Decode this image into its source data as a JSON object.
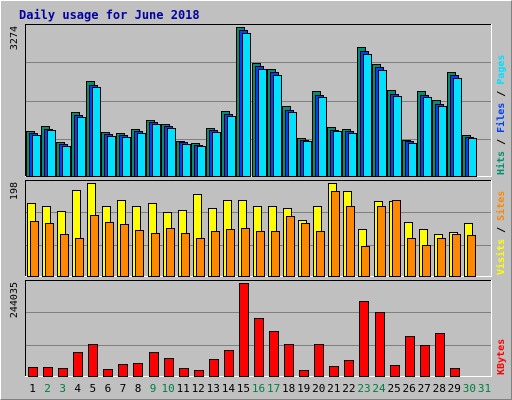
{
  "chart_data": {
    "type": "bar",
    "title": "Daily usage for June 2018",
    "colors": {
      "hits": "#009070",
      "files": "#0040ff",
      "pages": "#00e0ff",
      "visits": "#ffff00",
      "sites": "#ff8800",
      "kbytes": "#ff0000",
      "weekend_label": "#008040",
      "weekday_label": "#000000",
      "title": "#0000a0",
      "plot_bg": "#c0c0c0",
      "grid": "#808080"
    },
    "categories": [
      "1",
      "2",
      "3",
      "4",
      "5",
      "6",
      "7",
      "8",
      "9",
      "10",
      "11",
      "12",
      "13",
      "14",
      "15",
      "16",
      "17",
      "18",
      "19",
      "20",
      "21",
      "22",
      "23",
      "24",
      "25",
      "26",
      "27",
      "28",
      "29",
      "30",
      "31"
    ],
    "weekend_days": [
      "2",
      "3",
      "9",
      "10",
      "16",
      "17",
      "23",
      "24",
      "30",
      "31"
    ],
    "panels": [
      {
        "id": "hits-files-pages",
        "ymax_label": "3274",
        "ymax": 3274,
        "side_label_parts": [
          {
            "text": "Hits",
            "color": "#009070"
          },
          {
            "text": " / ",
            "color": "#000000"
          },
          {
            "text": "Files",
            "color": "#0040ff"
          },
          {
            "text": " / ",
            "color": "#000000"
          },
          {
            "text": "Pages",
            "color": "#00e0ff"
          }
        ],
        "series": [
          {
            "name": "Hits",
            "color": "#009070",
            "values": [
              990,
              1100,
              740,
              1400,
              2090,
              970,
              950,
              1040,
              1240,
              1140,
              770,
              730,
              1060,
              1430,
              3270,
              2480,
              2350,
              1530,
              830,
              1860,
              1070,
              1040,
              2830,
              2460,
              1880,
              800,
              1860,
              1660,
              2280,
              900,
              0
            ]
          },
          {
            "name": "Files",
            "color": "#0040ff",
            "values": [
              940,
              1040,
              700,
              1340,
              2010,
              920,
              900,
              990,
              1190,
              1090,
              740,
              690,
              1010,
              1370,
              3200,
              2410,
              2280,
              1460,
              790,
              1790,
              1020,
              990,
              2740,
              2390,
              1810,
              760,
              1790,
              1590,
              2210,
              860,
              0
            ]
          },
          {
            "name": "Pages",
            "color": "#00e0ff",
            "values": [
              900,
              1000,
              670,
              1290,
              1950,
              880,
              860,
              950,
              1150,
              1050,
              710,
              660,
              970,
              1320,
              3150,
              2360,
              2230,
              1410,
              760,
              1740,
              980,
              950,
              2680,
              2340,
              1760,
              730,
              1740,
              1540,
              2160,
              830,
              0
            ]
          }
        ]
      },
      {
        "id": "visits-sites",
        "ymax_label": "198",
        "ymax": 198,
        "side_label_parts": [
          {
            "text": "Visits",
            "color": "#ffff00"
          },
          {
            "text": " / ",
            "color": "#000000"
          },
          {
            "text": "Sites",
            "color": "#ff8800"
          }
        ],
        "series": [
          {
            "name": "Visits",
            "color": "#ffff00",
            "values": [
              155,
              150,
              139,
              183,
              198,
              148,
              162,
              150,
              155,
              136,
              140,
              175,
              145,
              162,
              162,
              150,
              148,
              145,
              120,
              150,
              198,
              182,
              100,
              160,
              160,
              115,
              100,
              90,
              93,
              113,
              0
            ]
          },
          {
            "name": "Sites",
            "color": "#ff8800",
            "values": [
              118,
              112,
              90,
              80,
              130,
              115,
              110,
              97,
              92,
              102,
              92,
              80,
              95,
              100,
              102,
              95,
              95,
              127,
              112,
              95,
              180,
              148,
              63,
              150,
              162,
              80,
              65,
              80,
              90,
              87,
              0
            ]
          }
        ]
      },
      {
        "id": "kbytes",
        "ymax_label": "244035",
        "ymax": 244035,
        "side_label_parts": [
          {
            "text": "KBytes",
            "color": "#ff0000"
          }
        ],
        "series": [
          {
            "name": "KBytes",
            "color": "#ff0000",
            "values": [
              24000,
              24000,
              20000,
              64000,
              84000,
              18000,
              32000,
              35000,
              62000,
              48000,
              22000,
              17000,
              45000,
              68000,
              244035,
              152000,
              119000,
              83000,
              16000,
              85000,
              27000,
              43000,
              198000,
              167000,
              29000,
              106000,
              82000,
              114000,
              20000,
              0,
              0
            ]
          }
        ]
      }
    ]
  }
}
